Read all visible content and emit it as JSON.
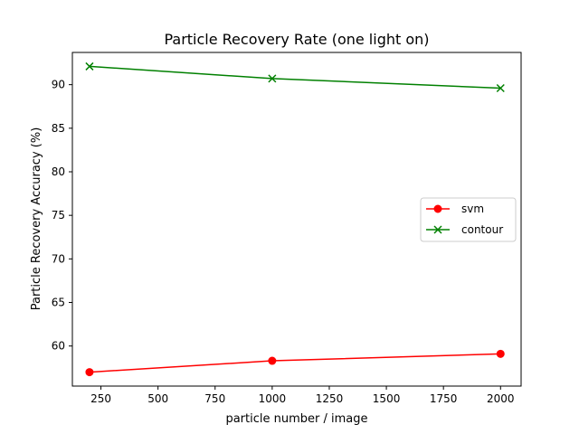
{
  "chart_data": {
    "type": "line",
    "title": "Particle Recovery Rate (one light on)",
    "xlabel": "particle number / image",
    "ylabel": "Particle Recovery Accuracy (%)",
    "x": [
      200,
      1000,
      2000
    ],
    "xlim": [
      125,
      2090
    ],
    "ylim": [
      55.4,
      93.7
    ],
    "xticks": [
      250,
      500,
      750,
      1000,
      1250,
      1500,
      1750,
      2000
    ],
    "yticks": [
      60,
      65,
      70,
      75,
      80,
      85,
      90
    ],
    "legend_position": "center-right",
    "series": [
      {
        "name": "svm",
        "values": [
          57.0,
          58.3,
          59.1
        ],
        "color": "#ff0000",
        "marker": "circle"
      },
      {
        "name": "contour",
        "values": [
          92.1,
          90.7,
          89.6
        ],
        "color": "#008000",
        "marker": "x"
      }
    ]
  }
}
